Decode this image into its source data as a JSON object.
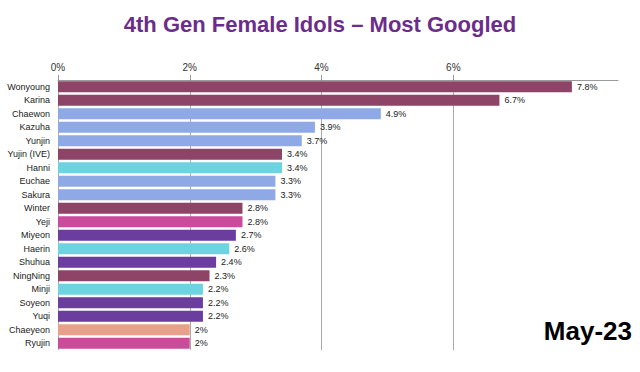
{
  "chart_data": {
    "type": "bar",
    "orientation": "horizontal",
    "title": "4th Gen Female Idols – Most Googled",
    "annotation": "May-23",
    "categories": [
      "Wonyoung",
      "Karina",
      "Chaewon",
      "Kazuha",
      "Yunjin",
      "Yujin (IVE)",
      "Hanni",
      "Euchae",
      "Sakura",
      "Winter",
      "Yeji",
      "Miyeon",
      "Haerin",
      "Shuhua",
      "NingNing",
      "Minji",
      "Soyeon",
      "Yuqi",
      "Chaeyeon",
      "Ryujin"
    ],
    "values": [
      7.8,
      6.7,
      4.9,
      3.9,
      3.7,
      3.4,
      3.4,
      3.3,
      3.3,
      2.8,
      2.8,
      2.7,
      2.6,
      2.4,
      2.3,
      2.2,
      2.2,
      2.2,
      2.0,
      2.0
    ],
    "value_labels": [
      "7.8%",
      "6.7%",
      "4.9%",
      "3.9%",
      "3.7%",
      "3.4%",
      "3.4%",
      "3.3%",
      "3.3%",
      "2.8%",
      "2.8%",
      "2.7%",
      "2.6%",
      "2.4%",
      "2.3%",
      "2.2%",
      "2.2%",
      "2.2%",
      "2%",
      "2%"
    ],
    "colors": [
      "#8e4466",
      "#8e4466",
      "#8fa8e6",
      "#8fa8e6",
      "#8fa8e6",
      "#8e4466",
      "#6dd3e0",
      "#8fa8e6",
      "#8fa8e6",
      "#8e4466",
      "#c94b9a",
      "#6a3d9e",
      "#6dd3e0",
      "#6a3d9e",
      "#8e4466",
      "#6dd3e0",
      "#6a3d9e",
      "#6a3d9e",
      "#e8a08a",
      "#c94b9a"
    ],
    "xlim": [
      0,
      8.5
    ],
    "xticks": [
      {
        "value": 0,
        "label": "0%"
      },
      {
        "value": 2,
        "label": "2%"
      },
      {
        "value": 4,
        "label": "4%"
      },
      {
        "value": 6,
        "label": "6%"
      }
    ],
    "grid": true,
    "data_labels": true
  }
}
